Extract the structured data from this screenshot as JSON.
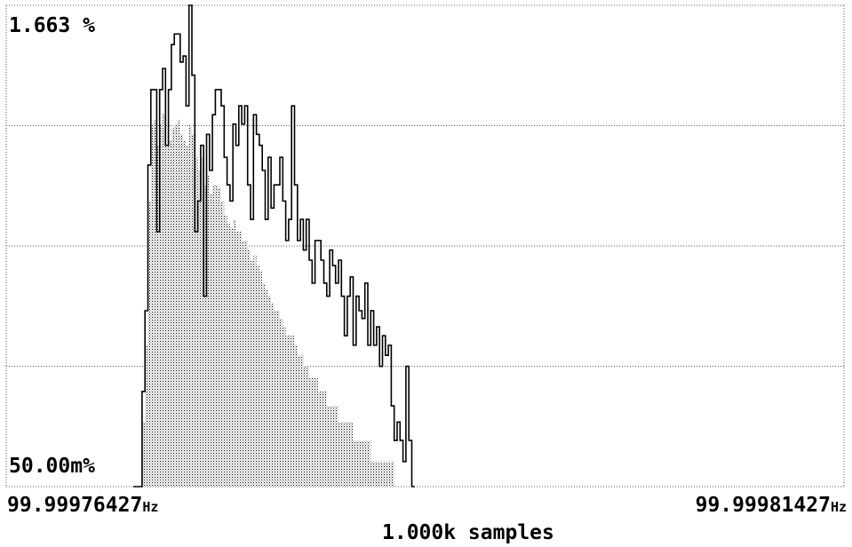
{
  "chart_data": {
    "type": "histogram",
    "y_top_label": "1.663 %",
    "y_bottom_label": "50.00m%",
    "x_start_label": "99.99976427",
    "x_end_label": "99.99981427",
    "x_unit": "Hz",
    "x_unit_display": "Hz",
    "sample_count_label": "1.000k samples",
    "y_scale": "log",
    "ylim_percent": [
      0.05,
      1.663
    ],
    "grid": "horizontal dotted, 4 divisions",
    "outline_values_percent": [
      0.05,
      0.05,
      0.05,
      0.1,
      0.18,
      0.52,
      0.9,
      0.9,
      0.32,
      0.9,
      1.05,
      0.6,
      0.9,
      1.25,
      1.35,
      1.35,
      1.1,
      1.15,
      0.8,
      1.663,
      1.0,
      0.32,
      0.4,
      0.6,
      0.2,
      0.65,
      0.5,
      0.75,
      0.9,
      0.9,
      0.8,
      0.55,
      0.45,
      0.4,
      0.7,
      0.6,
      0.8,
      0.7,
      0.8,
      0.45,
      0.35,
      0.75,
      0.65,
      0.6,
      0.5,
      0.35,
      0.55,
      0.38,
      0.45,
      0.45,
      0.55,
      0.4,
      0.3,
      0.35,
      0.8,
      0.45,
      0.3,
      0.35,
      0.28,
      0.35,
      0.26,
      0.22,
      0.3,
      0.3,
      0.26,
      0.22,
      0.2,
      0.28,
      0.25,
      0.22,
      0.26,
      0.2,
      0.15,
      0.2,
      0.23,
      0.14,
      0.2,
      0.18,
      0.17,
      0.22,
      0.14,
      0.18,
      0.14,
      0.16,
      0.12,
      0.15,
      0.13,
      0.14,
      0.09,
      0.07,
      0.08,
      0.07,
      0.06,
      0.12,
      0.07,
      0.05
    ],
    "fill_values_percent": [
      0.05,
      0.05,
      0.05,
      0.08,
      0.14,
      0.4,
      0.7,
      0.72,
      0.6,
      0.7,
      0.75,
      0.6,
      0.62,
      0.68,
      0.7,
      0.72,
      0.65,
      0.62,
      0.6,
      0.7,
      0.65,
      0.55,
      0.5,
      0.55,
      0.45,
      0.48,
      0.42,
      0.45,
      0.45,
      0.44,
      0.4,
      0.36,
      0.34,
      0.33,
      0.35,
      0.32,
      0.32,
      0.3,
      0.3,
      0.28,
      0.26,
      0.27,
      0.25,
      0.24,
      0.22,
      0.21,
      0.2,
      0.19,
      0.18,
      0.18,
      0.17,
      0.16,
      0.15,
      0.15,
      0.15,
      0.14,
      0.13,
      0.13,
      0.12,
      0.12,
      0.11,
      0.11,
      0.11,
      0.1,
      0.1,
      0.1,
      0.09,
      0.09,
      0.09,
      0.09,
      0.08,
      0.08,
      0.08,
      0.08,
      0.08,
      0.07,
      0.07,
      0.07,
      0.07,
      0.07,
      0.07,
      0.06,
      0.06,
      0.06,
      0.06,
      0.06,
      0.06,
      0.06,
      0.06,
      0.05,
      0.05,
      0.05,
      0.05,
      0.05,
      0.05,
      0.05
    ]
  }
}
